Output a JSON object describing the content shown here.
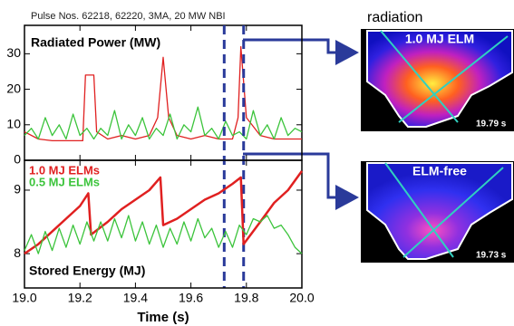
{
  "chart_data": [
    {
      "type": "line",
      "subtitle": "Pulse Nos. 62218, 62220, 3MA, 20 MW NBI",
      "title": "Radiated Power (MW)",
      "xlim": [
        19.0,
        20.0
      ],
      "ylim": [
        0,
        38
      ],
      "yticks": [
        0,
        10,
        20,
        30
      ],
      "vlines": [
        19.72,
        19.79
      ],
      "vline_color": "#2a3a9a",
      "series": [
        {
          "color": "#e02020",
          "x": [
            19.0,
            19.05,
            19.1,
            19.15,
            19.21,
            19.22,
            19.25,
            19.26,
            19.3,
            19.35,
            19.4,
            19.45,
            19.48,
            19.5,
            19.52,
            19.55,
            19.6,
            19.65,
            19.7,
            19.75,
            19.77,
            19.78,
            19.8,
            19.85,
            19.9,
            19.95,
            20.0
          ],
          "values": [
            8,
            6,
            5.5,
            5.5,
            5.5,
            24,
            24,
            8,
            6,
            7,
            6,
            7,
            12,
            29,
            12,
            7,
            6,
            7,
            6,
            6,
            12,
            32,
            12,
            7,
            6,
            6,
            6
          ]
        },
        {
          "color": "#3cc43c",
          "x": [
            19.0,
            19.025,
            19.05,
            19.075,
            19.1,
            19.125,
            19.15,
            19.175,
            19.2,
            19.225,
            19.25,
            19.275,
            19.3,
            19.325,
            19.35,
            19.375,
            19.4,
            19.425,
            19.45,
            19.475,
            19.5,
            19.525,
            19.55,
            19.575,
            19.6,
            19.625,
            19.65,
            19.675,
            19.7,
            19.725,
            19.75,
            19.775,
            19.8,
            19.825,
            19.85,
            19.875,
            19.9,
            19.925,
            19.95,
            19.975,
            20.0
          ],
          "values": [
            7,
            9,
            6,
            12,
            7,
            10,
            6,
            13,
            7,
            9,
            6,
            9,
            7,
            14,
            6,
            10,
            7,
            12,
            6,
            9,
            7,
            13,
            6,
            10,
            8,
            15,
            7,
            9,
            6,
            11,
            7,
            8,
            6,
            14,
            7,
            10,
            6,
            12,
            7,
            9,
            8
          ]
        }
      ]
    },
    {
      "type": "line",
      "title": "Stored Energy (MJ)",
      "xlabel": "Time (s)",
      "legend": "upper left",
      "xlim": [
        19.0,
        20.0
      ],
      "ylim": [
        7.46,
        9.47
      ],
      "yticks": [
        8,
        9
      ],
      "xticks": [
        {
          "value": 19,
          "label": "19.0"
        },
        19.2,
        19.4,
        19.6,
        19.8,
        {
          "value": 20,
          "label": "20.0"
        }
      ],
      "series": [
        {
          "name": "1.0 MJ ELMs",
          "color": "#e02020",
          "x": [
            19.0,
            19.05,
            19.1,
            19.15,
            19.2,
            19.23,
            19.24,
            19.3,
            19.35,
            19.4,
            19.45,
            19.49,
            19.5,
            19.55,
            19.6,
            19.65,
            19.7,
            19.75,
            19.78,
            19.79,
            19.85,
            19.9,
            19.95,
            20.0
          ],
          "values": [
            8.0,
            8.15,
            8.35,
            8.55,
            8.75,
            8.95,
            8.3,
            8.5,
            8.7,
            8.85,
            9.0,
            9.2,
            8.45,
            8.55,
            8.7,
            8.85,
            8.95,
            9.1,
            9.2,
            8.15,
            8.5,
            8.8,
            9.0,
            9.3
          ]
        },
        {
          "name": "0.5 MJ ELMs",
          "color": "#3cc43c",
          "x": [
            19.0,
            19.025,
            19.05,
            19.075,
            19.1,
            19.125,
            19.15,
            19.175,
            19.2,
            19.225,
            19.25,
            19.275,
            19.3,
            19.325,
            19.35,
            19.375,
            19.4,
            19.425,
            19.45,
            19.475,
            19.5,
            19.525,
            19.55,
            19.575,
            19.6,
            19.625,
            19.65,
            19.675,
            19.7,
            19.725,
            19.75,
            19.775,
            19.8,
            19.825,
            19.85,
            19.875,
            19.9,
            19.925,
            19.95,
            19.975,
            20.0
          ],
          "values": [
            8.05,
            8.3,
            8.0,
            8.35,
            8.05,
            8.4,
            8.1,
            8.45,
            8.15,
            8.5,
            8.2,
            8.5,
            8.2,
            8.55,
            8.25,
            8.6,
            8.2,
            8.5,
            8.15,
            8.45,
            8.1,
            8.4,
            8.15,
            8.5,
            8.2,
            8.55,
            8.25,
            8.4,
            8.1,
            8.35,
            8.1,
            8.45,
            8.3,
            8.55,
            8.5,
            8.6,
            8.4,
            8.45,
            8.3,
            8.1,
            8.0
          ]
        }
      ]
    }
  ],
  "images": {
    "heading": "radiation",
    "panels": [
      {
        "label": "1.0 MJ ELM",
        "time": "19.79 s"
      },
      {
        "label": "ELM-free",
        "time": "19.73 s"
      }
    ]
  }
}
